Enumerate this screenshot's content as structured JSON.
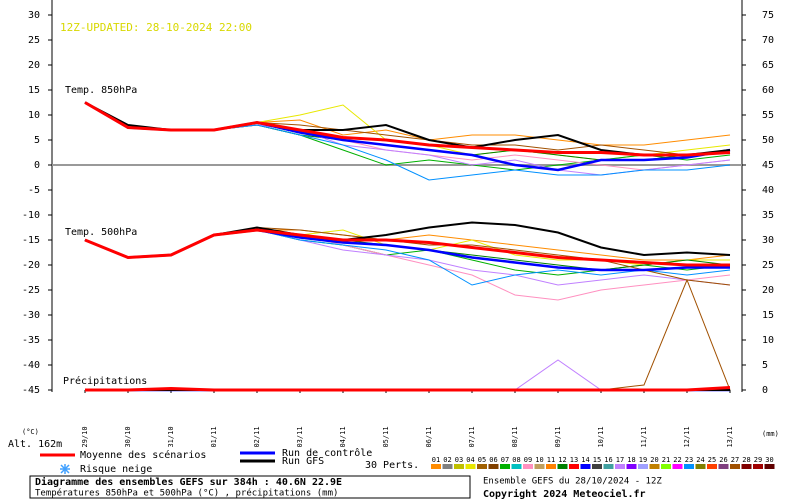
{
  "chart_data": {
    "type": "line",
    "update_label": "12Z-UPDATED: 28-10-2024 22:00",
    "label_850": "Temp. 850hPa",
    "label_500": "Temp. 500hPa",
    "label_precip": "Précipitations",
    "y_unit": "(°C)",
    "altitude": "Alt. 162m",
    "y2_unit": "(mm)",
    "title": "Diagramme des ensembles GEFS sur 384h : 40.6N 22.9E",
    "subtitle": "Températures 850hPa et 500hPa (°C) , précipitations (mm)",
    "run_info": "Ensemble GEFS du 28/10/2024 - 12Z",
    "copyright": "Copyright 2024 Meteociel.fr",
    "snow_label": "Risque neige",
    "perts_label": "30 Perts.",
    "categories": [
      "29/10",
      "30/10",
      "31/10",
      "01/11",
      "02/11",
      "03/11",
      "04/11",
      "05/11",
      "06/11",
      "07/11",
      "08/11",
      "09/11",
      "10/11",
      "11/11",
      "12/11",
      "13/11"
    ],
    "ylim": [
      -45,
      30
    ],
    "yticks": [
      -45,
      -40,
      -35,
      -30,
      -25,
      -20,
      -15,
      -10,
      -5,
      0,
      5,
      10,
      15,
      20,
      25,
      30
    ],
    "y2lim": [
      0,
      75
    ],
    "y2ticks": [
      0,
      5,
      10,
      15,
      20,
      25,
      30,
      35,
      40,
      45,
      50,
      55,
      60,
      65,
      70,
      75
    ],
    "series": [
      {
        "name": "Moyenne des scénarios",
        "color": "#ff0000",
        "t850": [
          12.5,
          7.5,
          7,
          7,
          8.5,
          7,
          5.5,
          5,
          4,
          3.5,
          3,
          2.5,
          2.5,
          2,
          2,
          2.5
        ],
        "t500": [
          -15,
          -18.5,
          -18,
          -14,
          -13,
          -14,
          -15,
          -15,
          -15.5,
          -16.5,
          -17.5,
          -18.5,
          -19,
          -19.5,
          -20,
          -20
        ],
        "precip": [
          0,
          0,
          0.3,
          0,
          0,
          0,
          0,
          0,
          0,
          0,
          0,
          0,
          0,
          0,
          0,
          0.5
        ],
        "axis": "y2"
      },
      {
        "name": "Run de contrôle",
        "color": "#0000ff",
        "t850": [
          12.5,
          7.5,
          7,
          7,
          8.5,
          6.5,
          5,
          4,
          3,
          2,
          0,
          -1,
          1,
          1,
          1.5,
          3
        ],
        "t500": [
          -15,
          -18.5,
          -18,
          -14,
          -13,
          -14.5,
          -15.5,
          -16,
          -17,
          -18.5,
          -19.5,
          -20.5,
          -21,
          -21,
          -20.5,
          -20.5
        ],
        "precip": [
          0,
          0,
          0,
          0,
          0,
          0,
          0,
          0,
          0,
          0,
          0,
          0,
          0,
          0,
          0,
          0
        ],
        "axis": "y2"
      },
      {
        "name": "Run GFS",
        "color": "#000000",
        "t850": [
          12.5,
          8,
          7,
          7,
          8.5,
          7,
          7,
          8,
          5,
          3.5,
          5,
          6,
          3,
          2,
          2,
          3
        ],
        "t500": [
          -15,
          -18.5,
          -18,
          -14,
          -12.5,
          -14,
          -15,
          -14,
          -12.5,
          -11.5,
          -12,
          -13.5,
          -16.5,
          -18,
          -17.5,
          -18
        ],
        "precip": [
          0,
          0,
          0,
          0,
          0,
          0,
          0,
          0,
          0,
          0,
          0,
          0,
          0,
          0,
          0,
          0
        ],
        "axis": "y2"
      }
    ],
    "perturbations": [
      {
        "label": "01",
        "color": "#ff8c00",
        "t850": [
          12.5,
          7.5,
          7,
          7,
          8.5,
          9,
          6,
          7,
          5,
          6,
          6,
          5,
          4,
          4,
          5,
          6
        ],
        "t500": [
          -15,
          -18.5,
          -18,
          -14,
          -13,
          -13,
          -14,
          -15,
          -14,
          -15,
          -16,
          -17,
          -18,
          -19,
          -19,
          -18
        ]
      },
      {
        "label": "02",
        "color": "#808080"
      },
      {
        "label": "03",
        "color": "#c0c000"
      },
      {
        "label": "04",
        "color": "#e8e800",
        "t850": [
          12.5,
          7.5,
          7,
          7,
          8.5,
          10,
          12,
          5,
          4,
          2,
          3,
          2,
          1,
          2,
          3,
          4
        ],
        "t500": [
          -15,
          -18.5,
          -18,
          -14,
          -12.5,
          -14,
          -13,
          -16,
          -17,
          -15,
          -18,
          -19,
          -19,
          -20,
          -19,
          -19
        ]
      },
      {
        "label": "05",
        "color": "#a06000"
      },
      {
        "label": "06",
        "color": "#804000"
      },
      {
        "label": "07",
        "color": "#00b000",
        "t850": [
          12.5,
          7.5,
          7,
          7,
          8,
          6,
          3,
          0,
          1,
          0,
          -1,
          0,
          1,
          2,
          1,
          2
        ],
        "t500": [
          -15,
          -18.5,
          -18,
          -14,
          -13,
          -15,
          -16,
          -18,
          -17,
          -19,
          -21,
          -22,
          -21,
          -20,
          -21,
          -20
        ]
      },
      {
        "label": "08",
        "color": "#00c0c0"
      },
      {
        "label": "09",
        "color": "#ff90c0",
        "t850": [
          12.5,
          7.5,
          7,
          7,
          8,
          7,
          5,
          3,
          2,
          1,
          2,
          1,
          0,
          -1,
          0,
          1
        ],
        "t500": [
          -15,
          -18.5,
          -18,
          -14,
          -13,
          -14,
          -16,
          -18,
          -20,
          -22,
          -26,
          -27,
          -25,
          -24,
          -23,
          -22
        ]
      },
      {
        "label": "10",
        "color": "#c0a060"
      },
      {
        "label": "11",
        "color": "#ff8000"
      },
      {
        "label": "12",
        "color": "#008000",
        "t850": [
          12.5,
          7.5,
          7,
          7,
          8,
          6,
          5,
          4,
          3,
          2,
          3,
          2,
          1,
          1,
          2,
          3
        ],
        "t500": [
          -15,
          -18.5,
          -18,
          -14,
          -13,
          -14,
          -15,
          -16,
          -17,
          -18,
          -19,
          -20,
          -21,
          -20,
          -19,
          -20
        ]
      },
      {
        "label": "13",
        "color": "#ff0000"
      },
      {
        "label": "14",
        "color": "#0000ff"
      },
      {
        "label": "15",
        "color": "#404040"
      },
      {
        "label": "16",
        "color": "#40a0a0"
      },
      {
        "label": "17",
        "color": "#c080ff",
        "t850": [
          12.5,
          7.5,
          7,
          7,
          8,
          7,
          4,
          3,
          2,
          0,
          1,
          -1,
          -2,
          -1,
          0,
          1
        ],
        "t500": [
          -15,
          -18.5,
          -18,
          -14,
          -13,
          -15,
          -17,
          -18,
          -19,
          -21,
          -22,
          -24,
          -23,
          -22,
          -23,
          -24
        ],
        "precip": [
          0,
          0,
          0,
          0,
          0,
          0,
          0,
          0,
          0,
          0,
          0,
          6,
          0,
          0,
          0,
          0
        ]
      },
      {
        "label": "18",
        "color": "#8000ff"
      },
      {
        "label": "19",
        "color": "#a0a0ff"
      },
      {
        "label": "20",
        "color": "#c08000"
      },
      {
        "label": "21",
        "color": "#80ff00"
      },
      {
        "label": "22",
        "color": "#ff00ff"
      },
      {
        "label": "23",
        "color": "#0090ff",
        "t850": [
          12.5,
          7.5,
          7,
          7,
          8,
          6,
          4,
          1,
          -3,
          -2,
          -1,
          -2,
          -2,
          -1,
          -1,
          0
        ],
        "t500": [
          -15,
          -18.5,
          -18,
          -14,
          -13,
          -15,
          -16,
          -17,
          -19,
          -24,
          -22,
          -21,
          -22,
          -21,
          -22,
          -21
        ]
      },
      {
        "label": "24",
        "color": "#808000"
      },
      {
        "label": "25",
        "color": "#ff4000"
      },
      {
        "label": "26",
        "color": "#804080"
      },
      {
        "label": "27",
        "color": "#a05000",
        "t850": [
          12.5,
          7.5,
          7,
          7,
          8.5,
          8,
          7,
          6,
          5,
          4,
          4,
          3,
          4,
          3,
          2,
          3
        ],
        "t500": [
          -15,
          -18.5,
          -18,
          -14,
          -12.5,
          -13,
          -14,
          -15,
          -16,
          -16,
          -17,
          -18,
          -19,
          -21,
          -23,
          -24
        ],
        "precip": [
          0,
          0,
          0,
          0,
          0,
          0,
          0,
          0,
          0,
          0,
          0,
          0,
          0,
          1,
          22,
          0
        ]
      },
      {
        "label": "28",
        "color": "#800000"
      },
      {
        "label": "29",
        "color": "#a00000"
      },
      {
        "label": "30",
        "color": "#600000"
      }
    ]
  }
}
